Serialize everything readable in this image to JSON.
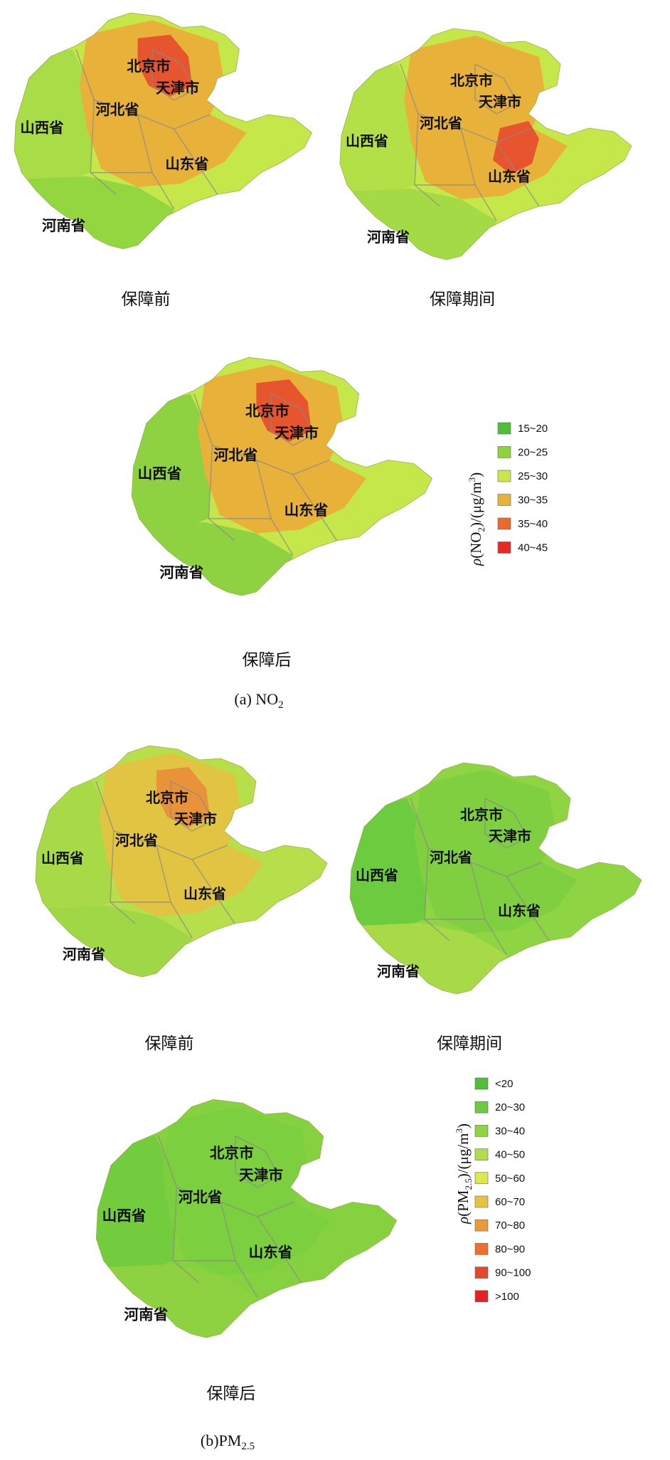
{
  "provinces": [
    "北京市",
    "天津市",
    "河北省",
    "山西省",
    "山东省",
    "河南省"
  ],
  "panel_a": {
    "label_prefix": "(a) NO",
    "label_subscript": "2",
    "maps": [
      {
        "caption": "保障前",
        "colors": {
          "base": "#c6e74a",
          "west": "#a9dd47",
          "south": "#93d640",
          "core": "#e8b13a",
          "hot": "#e6552e"
        }
      },
      {
        "caption": "保障期间",
        "colors": {
          "base": "#c6e74a",
          "west": "#b4e047",
          "south": "#a4da45",
          "core": "#e8b13a",
          "hot": "#e6552e"
        }
      },
      {
        "caption": "保障后",
        "colors": {
          "base": "#c6e74a",
          "west": "#8ed242",
          "south": "#8ed242",
          "core": "#e8b13a",
          "hot": "#e6552e"
        }
      }
    ],
    "legend": {
      "title_rho": "ρ",
      "title_mid": "(NO",
      "title_sub": "2",
      "title_unit": ")/(μg/m",
      "title_sup": "3",
      "title_end": ")",
      "items": [
        {
          "label": "15~20",
          "color": "#4fbf3a"
        },
        {
          "label": "20~25",
          "color": "#8fd43f"
        },
        {
          "label": "25~30",
          "color": "#c8e74a"
        },
        {
          "label": "30~35",
          "color": "#e8b13a"
        },
        {
          "label": "35~40",
          "color": "#ea6a2e"
        },
        {
          "label": "40~45",
          "color": "#e42a24"
        }
      ]
    }
  },
  "panel_b": {
    "label_prefix": "(b)PM",
    "label_subscript": "2.5",
    "maps": [
      {
        "caption": "保障前",
        "colors": {
          "base": "#b7de4b",
          "west": "#a8da47",
          "south": "#9fd746",
          "core": "#e0c442",
          "hot": "#e8923a"
        }
      },
      {
        "caption": "保障期间",
        "colors": {
          "base": "#8fd443",
          "west": "#6ccb3e",
          "south": "#a8da47",
          "core": "#7fcf40",
          "hot": "#7fcf40"
        }
      },
      {
        "caption": "保障后",
        "colors": {
          "base": "#86d13f",
          "west": "#72cc3e",
          "south": "#8ed242",
          "core": "#7ccf3f",
          "hot": "#7ccf3f"
        }
      }
    ],
    "legend": {
      "title_rho": "ρ",
      "title_mid": "(PM",
      "title_sub": "2.5",
      "title_unit": ")/(μg/m",
      "title_sup": "3",
      "title_end": ")",
      "items": [
        {
          "label": "<20",
          "color": "#4fbf3a"
        },
        {
          "label": "20~30",
          "color": "#6ccb3e"
        },
        {
          "label": "30~40",
          "color": "#8fd443"
        },
        {
          "label": "40~50",
          "color": "#b2dd4a"
        },
        {
          "label": "50~60",
          "color": "#dde84e"
        },
        {
          "label": "60~70",
          "color": "#e8c23e"
        },
        {
          "label": "70~80",
          "color": "#ea9a36"
        },
        {
          "label": "80~90",
          "color": "#ea7030"
        },
        {
          "label": "90~100",
          "color": "#e6462a"
        },
        {
          "label": ">100",
          "color": "#e02424"
        }
      ]
    }
  }
}
